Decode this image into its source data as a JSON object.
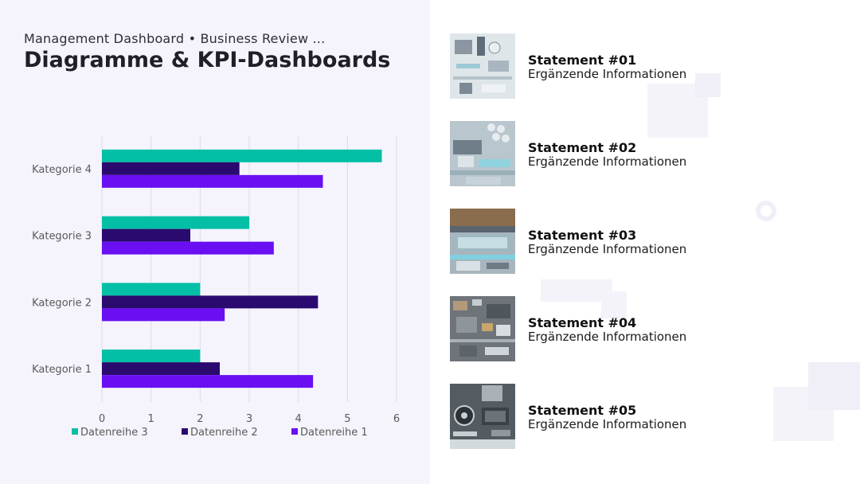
{
  "header": {
    "subtitle": "Management Dashboard • Business Review ...",
    "title": "Diagramme & KPI-Dashboards"
  },
  "chart_data": {
    "type": "bar",
    "orientation": "horizontal",
    "categories": [
      "Kategorie 1",
      "Kategorie 2",
      "Kategorie 3",
      "Kategorie 4"
    ],
    "series": [
      {
        "name": "Datenreihe 3",
        "color": "#03bfa5",
        "values": [
          2.0,
          2.0,
          3.0,
          5.7
        ]
      },
      {
        "name": "Datenreihe 2",
        "color": "#2a0a6e",
        "values": [
          2.4,
          4.4,
          1.8,
          2.8
        ]
      },
      {
        "name": "Datenreihe 1",
        "color": "#6a0ff2",
        "values": [
          4.3,
          2.5,
          3.5,
          4.5
        ]
      }
    ],
    "xticks": [
      "0",
      "1",
      "2",
      "3",
      "4",
      "5",
      "6"
    ],
    "xlim": [
      0,
      6
    ],
    "grid": true,
    "legend_position": "bottom"
  },
  "statements": [
    {
      "title": "Statement #01",
      "info": "Ergänzende Informationen",
      "image_icon": "circuit-board-photo"
    },
    {
      "title": "Statement #02",
      "info": "Ergänzende Informationen",
      "image_icon": "circuit-board-photo"
    },
    {
      "title": "Statement #03",
      "info": "Ergänzende Informationen",
      "image_icon": "circuit-board-photo"
    },
    {
      "title": "Statement #04",
      "info": "Ergänzende Informationen",
      "image_icon": "circuit-board-photo"
    },
    {
      "title": "Statement #05",
      "info": "Ergänzende Informationen",
      "image_icon": "circuit-board-photo"
    }
  ]
}
